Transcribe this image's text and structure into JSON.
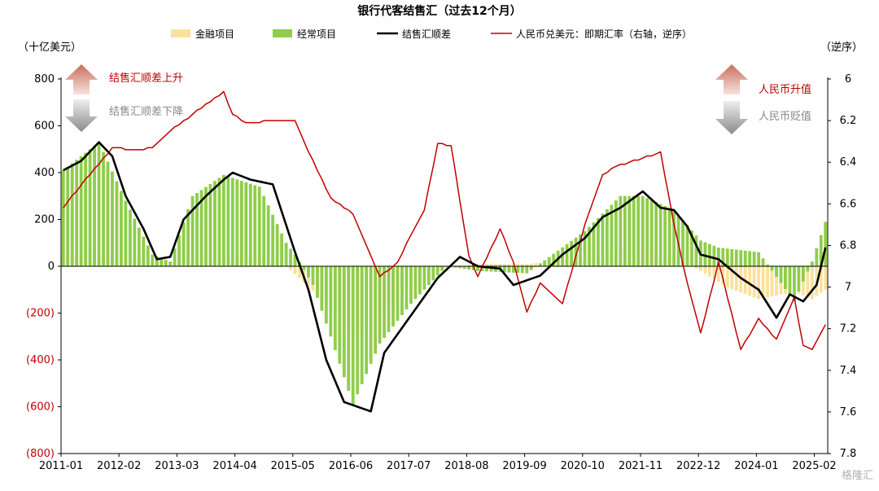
{
  "chart_data": {
    "type": "bar+line",
    "title": "银行代客结售汇（过去12个月）",
    "left_unit": "（十亿美元）",
    "right_unit": "（逆序）",
    "left_axis": {
      "min": -800,
      "max": 800,
      "ticks": [
        {
          "v": 800,
          "label": "800"
        },
        {
          "v": 600,
          "label": "600"
        },
        {
          "v": 400,
          "label": "400"
        },
        {
          "v": 200,
          "label": "200"
        },
        {
          "v": 0,
          "label": "0"
        },
        {
          "v": -200,
          "label": "(200)"
        },
        {
          "v": -400,
          "label": "(400)"
        },
        {
          "v": -600,
          "label": "(600)"
        },
        {
          "v": -800,
          "label": "(800)"
        }
      ]
    },
    "right_axis": {
      "min": 6.0,
      "max": 7.8,
      "inverted": true,
      "ticks": [
        {
          "v": 6.0,
          "label": "6"
        },
        {
          "v": 6.2,
          "label": "6.2"
        },
        {
          "v": 6.4,
          "label": "6.4"
        },
        {
          "v": 6.6,
          "label": "6.6"
        },
        {
          "v": 6.8,
          "label": "6.8"
        },
        {
          "v": 7.0,
          "label": "7"
        },
        {
          "v": 7.2,
          "label": "7.2"
        },
        {
          "v": 7.4,
          "label": "7.4"
        },
        {
          "v": 7.6,
          "label": "7.6"
        },
        {
          "v": 7.8,
          "label": "7.8"
        }
      ]
    },
    "x_labels": [
      "2011-01",
      "2012-02",
      "2013-03",
      "2014-04",
      "2015-05",
      "2016-06",
      "2017-07",
      "2018-08",
      "2019-09",
      "2020-10",
      "2021-11",
      "2022-12",
      "2024-01",
      "2025-02"
    ],
    "x_start": "2011-01",
    "x_end": "2025-04",
    "series": [
      {
        "name": "金融项目",
        "type": "bar",
        "color": "#fbe19c",
        "axis": "left",
        "keypoints": [
          [
            "2011-01",
            50
          ],
          [
            "2011-09",
            60
          ],
          [
            "2012-06",
            30
          ],
          [
            "2013-01",
            10
          ],
          [
            "2014-01",
            40
          ],
          [
            "2014-09",
            30
          ],
          [
            "2015-03",
            0
          ],
          [
            "2015-06",
            -50
          ],
          [
            "2016-01",
            -180
          ],
          [
            "2016-06",
            -300
          ],
          [
            "2016-12",
            -230
          ],
          [
            "2017-07",
            -80
          ],
          [
            "2018-03",
            -10
          ],
          [
            "2018-10",
            10
          ],
          [
            "2019-09",
            10
          ],
          [
            "2020-10",
            30
          ],
          [
            "2021-06",
            70
          ],
          [
            "2021-11",
            80
          ],
          [
            "2022-06",
            40
          ],
          [
            "2022-12",
            -20
          ],
          [
            "2023-06",
            -90
          ],
          [
            "2024-01",
            -140
          ],
          [
            "2024-09",
            -110
          ],
          [
            "2025-01",
            -140
          ],
          [
            "2025-04",
            -100
          ]
        ]
      },
      {
        "name": "经常项目",
        "type": "bar",
        "color": "#8fcd4b",
        "axis": "left",
        "keypoints": [
          [
            "2011-01",
            410
          ],
          [
            "2011-09",
            530
          ],
          [
            "2012-03",
            280
          ],
          [
            "2012-09",
            50
          ],
          [
            "2013-01",
            20
          ],
          [
            "2013-06",
            300
          ],
          [
            "2014-01",
            390
          ],
          [
            "2014-09",
            340
          ],
          [
            "2015-03",
            100
          ],
          [
            "2015-05",
            50
          ],
          [
            "2015-09",
            -80
          ],
          [
            "2016-01",
            -300
          ],
          [
            "2016-06",
            -590
          ],
          [
            "2016-12",
            -330
          ],
          [
            "2017-07",
            -160
          ],
          [
            "2018-03",
            0
          ],
          [
            "2018-10",
            -20
          ],
          [
            "2019-09",
            -30
          ],
          [
            "2020-10",
            150
          ],
          [
            "2021-06",
            300
          ],
          [
            "2021-11",
            300
          ],
          [
            "2022-06",
            240
          ],
          [
            "2022-12",
            110
          ],
          [
            "2023-04",
            80
          ],
          [
            "2024-01",
            60
          ],
          [
            "2024-09",
            -150
          ],
          [
            "2025-01",
            20
          ],
          [
            "2025-04",
            190
          ]
        ]
      },
      {
        "name": "结售汇顺差",
        "type": "line",
        "color": "#000000",
        "axis": "left",
        "keypoints": [
          [
            "2011-01",
            410
          ],
          [
            "2011-05",
            450
          ],
          [
            "2011-09",
            530
          ],
          [
            "2011-12",
            470
          ],
          [
            "2012-03",
            300
          ],
          [
            "2012-07",
            160
          ],
          [
            "2012-10",
            30
          ],
          [
            "2013-01",
            40
          ],
          [
            "2013-04",
            200
          ],
          [
            "2013-09",
            300
          ],
          [
            "2014-01",
            370
          ],
          [
            "2014-03",
            400
          ],
          [
            "2014-07",
            370
          ],
          [
            "2014-12",
            350
          ],
          [
            "2015-05",
            60
          ],
          [
            "2015-08",
            -100
          ],
          [
            "2015-12",
            -400
          ],
          [
            "2016-04",
            -580
          ],
          [
            "2016-10",
            -620
          ],
          [
            "2017-01",
            -370
          ],
          [
            "2017-07",
            -210
          ],
          [
            "2018-01",
            -50
          ],
          [
            "2018-06",
            40
          ],
          [
            "2018-10",
            0
          ],
          [
            "2019-03",
            -10
          ],
          [
            "2019-06",
            -80
          ],
          [
            "2019-12",
            -40
          ],
          [
            "2020-05",
            50
          ],
          [
            "2020-10",
            120
          ],
          [
            "2021-02",
            210
          ],
          [
            "2021-06",
            250
          ],
          [
            "2021-11",
            320
          ],
          [
            "2022-03",
            250
          ],
          [
            "2022-06",
            240
          ],
          [
            "2022-09",
            170
          ],
          [
            "2022-12",
            50
          ],
          [
            "2023-04",
            30
          ],
          [
            "2023-09",
            -50
          ],
          [
            "2024-01",
            -100
          ],
          [
            "2024-05",
            -220
          ],
          [
            "2024-08",
            -120
          ],
          [
            "2024-11",
            -150
          ],
          [
            "2025-02",
            -80
          ],
          [
            "2025-04",
            80
          ]
        ]
      },
      {
        "name": "人民币兑美元：即期汇率（右轴，逆序）",
        "type": "line",
        "color": "#c00000",
        "axis": "right",
        "keypoints": [
          [
            "2011-01",
            6.62
          ],
          [
            "2011-06",
            6.48
          ],
          [
            "2011-12",
            6.33
          ],
          [
            "2012-06",
            6.34
          ],
          [
            "2012-09",
            6.33
          ],
          [
            "2013-01",
            6.25
          ],
          [
            "2013-06",
            6.17
          ],
          [
            "2014-01",
            6.06
          ],
          [
            "2014-03",
            6.17
          ],
          [
            "2014-06",
            6.21
          ],
          [
            "2014-12",
            6.2
          ],
          [
            "2015-05",
            6.2
          ],
          [
            "2015-08",
            6.35
          ],
          [
            "2016-01",
            6.57
          ],
          [
            "2016-06",
            6.65
          ],
          [
            "2016-12",
            6.95
          ],
          [
            "2017-04",
            6.88
          ],
          [
            "2017-07",
            6.75
          ],
          [
            "2017-10",
            6.63
          ],
          [
            "2018-01",
            6.31
          ],
          [
            "2018-04",
            6.32
          ],
          [
            "2018-08",
            6.85
          ],
          [
            "2018-10",
            6.95
          ],
          [
            "2019-03",
            6.72
          ],
          [
            "2019-06",
            6.88
          ],
          [
            "2019-09",
            7.12
          ],
          [
            "2019-12",
            6.98
          ],
          [
            "2020-05",
            7.08
          ],
          [
            "2020-10",
            6.7
          ],
          [
            "2021-02",
            6.46
          ],
          [
            "2021-05",
            6.42
          ],
          [
            "2021-11",
            6.38
          ],
          [
            "2022-03",
            6.35
          ],
          [
            "2022-06",
            6.7
          ],
          [
            "2022-09",
            6.98
          ],
          [
            "2022-12",
            7.22
          ],
          [
            "2023-04",
            6.88
          ],
          [
            "2023-09",
            7.3
          ],
          [
            "2024-01",
            7.15
          ],
          [
            "2024-05",
            7.25
          ],
          [
            "2024-09",
            7.05
          ],
          [
            "2024-11",
            7.28
          ],
          [
            "2025-01",
            7.3
          ],
          [
            "2025-04",
            7.18
          ]
        ]
      }
    ],
    "annotations": [
      {
        "text": "结售汇顺差上升",
        "color": "#c00000"
      },
      {
        "text": "结售汇顺差下降",
        "color": "#888888"
      },
      {
        "text": "人民币升值",
        "color": "#c00000"
      },
      {
        "text": "人民币贬值",
        "color": "#888888"
      }
    ],
    "watermark": "格隆汇"
  }
}
